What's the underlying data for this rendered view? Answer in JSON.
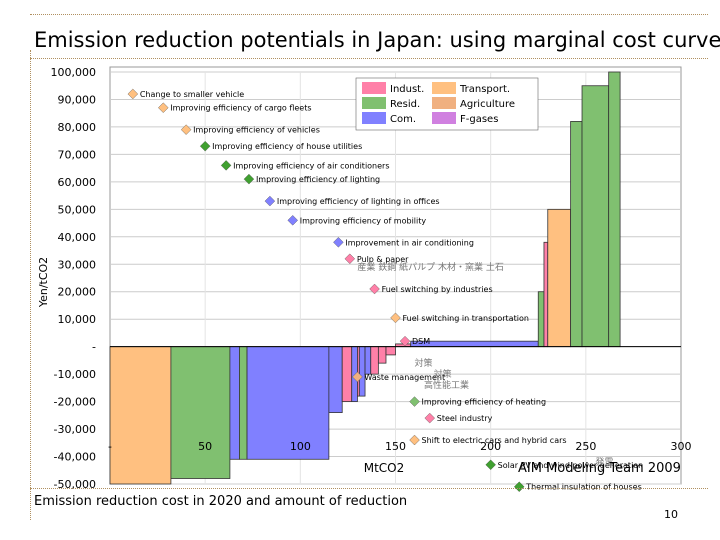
{
  "slide": {
    "title": "Emission reduction potentials in Japan: using marginal cost curve",
    "caption": "Emission reduction cost in 2020 and amount of reduction",
    "team": "AIM Modeling Team 2009",
    "page_number": "10"
  },
  "chart_data": {
    "type": "bar",
    "subtype": "marginal-abatement-cost-curve",
    "xlabel": "MtCO2",
    "ylabel": "Yen/tCO2",
    "xlim": [
      0,
      300
    ],
    "ylim": [
      -50000,
      100000
    ],
    "x_ticks": [
      {
        "v": 0,
        "label": "-"
      },
      {
        "v": 50,
        "label": "50"
      },
      {
        "v": 100,
        "label": "100"
      },
      {
        "v": 150,
        "label": "150"
      },
      {
        "v": 200,
        "label": "200"
      },
      {
        "v": 250,
        "label": "250"
      },
      {
        "v": 300,
        "label": "300"
      }
    ],
    "y_ticks": [
      {
        "v": 100000,
        "label": "100,000"
      },
      {
        "v": 90000,
        "label": "90,000"
      },
      {
        "v": 80000,
        "label": "80,000"
      },
      {
        "v": 70000,
        "label": "70,000"
      },
      {
        "v": 60000,
        "label": "60,000"
      },
      {
        "v": 50000,
        "label": "50,000"
      },
      {
        "v": 40000,
        "label": "40,000"
      },
      {
        "v": 30000,
        "label": "30,000"
      },
      {
        "v": 20000,
        "label": "20,000"
      },
      {
        "v": 10000,
        "label": "10,000"
      },
      {
        "v": 0,
        "label": "-"
      },
      {
        "v": -10000,
        "label": "-10,000"
      },
      {
        "v": -20000,
        "label": "-20,000"
      },
      {
        "v": -30000,
        "label": "-30,000"
      },
      {
        "v": -40000,
        "label": "-40,000"
      },
      {
        "v": -50000,
        "label": "-50,000"
      }
    ],
    "grid": true,
    "legend": {
      "placement": "top-center",
      "items": [
        {
          "name": "Indust.",
          "color": "#ff80a8"
        },
        {
          "name": "Resid.",
          "color": "#80c070"
        },
        {
          "name": "Com.",
          "color": "#8080ff"
        },
        {
          "name": "Transport.",
          "color": "#ffc080"
        },
        {
          "name": "Agriculture",
          "color": "#f0b080"
        },
        {
          "name": "F-gases",
          "color": "#d080e0"
        }
      ]
    },
    "sector_colors": {
      "Indust.": "#ff80a8",
      "Resid.": "#80c070",
      "Com.": "#8080ff",
      "Transport.": "#ffc080",
      "Agriculture": "#f0b080",
      "F-gases": "#d080e0"
    },
    "bars": [
      {
        "x0": 0,
        "x1": 32,
        "value": -50000,
        "sector": "Transport."
      },
      {
        "x0": 32,
        "x1": 63,
        "value": -48000,
        "sector": "Resid."
      },
      {
        "x0": 63,
        "x1": 68,
        "value": -41000,
        "sector": "Com."
      },
      {
        "x0": 68,
        "x1": 72,
        "value": -41000,
        "sector": "Resid."
      },
      {
        "x0": 72,
        "x1": 115,
        "value": -41000,
        "sector": "Com."
      },
      {
        "x0": 115,
        "x1": 122,
        "value": -24000,
        "sector": "Com."
      },
      {
        "x0": 122,
        "x1": 127,
        "value": -20000,
        "sector": "Indust."
      },
      {
        "x0": 127,
        "x1": 130,
        "value": -20000,
        "sector": "Com."
      },
      {
        "x0": 130,
        "x1": 131,
        "value": -18000,
        "sector": "Indust."
      },
      {
        "x0": 131,
        "x1": 134,
        "value": -18000,
        "sector": "Com."
      },
      {
        "x0": 134,
        "x1": 137,
        "value": -10000,
        "sector": "Com."
      },
      {
        "x0": 137,
        "x1": 141,
        "value": -10000,
        "sector": "Indust."
      },
      {
        "x0": 141,
        "x1": 145,
        "value": -6000,
        "sector": "Indust."
      },
      {
        "x0": 145,
        "x1": 150,
        "value": -3000,
        "sector": "Indust."
      },
      {
        "x0": 150,
        "x1": 158,
        "value": 1000,
        "sector": "Indust."
      },
      {
        "x0": 158,
        "x1": 225,
        "value": 2000,
        "sector": "Com."
      },
      {
        "x0": 225,
        "x1": 228,
        "value": 20000,
        "sector": "Resid."
      },
      {
        "x0": 228,
        "x1": 230,
        "value": 38000,
        "sector": "Indust."
      },
      {
        "x0": 230,
        "x1": 242,
        "value": 50000,
        "sector": "Transport."
      },
      {
        "x0": 242,
        "x1": 248,
        "value": 82000,
        "sector": "Resid."
      },
      {
        "x0": 248,
        "x1": 262,
        "value": 95000,
        "sector": "Resid."
      },
      {
        "x0": 262,
        "x1": 268,
        "value": 100000,
        "sector": "Resid."
      }
    ],
    "annotations": [
      {
        "text": "Change to smaller vehicle",
        "marker_color": "#ffc080",
        "x": 12,
        "y": 92000
      },
      {
        "text": "Improving efficiency of cargo fleets",
        "marker_color": "#ffc080",
        "x": 28,
        "y": 87000
      },
      {
        "text": "Improving efficiency of vehicles",
        "marker_color": "#ffc080",
        "x": 40,
        "y": 79000
      },
      {
        "text": "Improving efficiency of house utilities",
        "marker_color": "#40a030",
        "x": 50,
        "y": 73000
      },
      {
        "text": "Improving efficiency of air conditioners",
        "marker_color": "#40a030",
        "x": 61,
        "y": 66000
      },
      {
        "text": "Improving efficiency of lighting",
        "marker_color": "#40a030",
        "x": 73,
        "y": 61000
      },
      {
        "text": "Improving efficiency of lighting in offices",
        "marker_color": "#8080ff",
        "x": 84,
        "y": 53000
      },
      {
        "text": "Improving efficiency of mobility",
        "marker_color": "#8080ff",
        "x": 96,
        "y": 46000
      },
      {
        "text": "Improvement in air conditioning",
        "marker_color": "#8080ff",
        "x": 120,
        "y": 38000
      },
      {
        "text": "Pulp & paper",
        "marker_color": "#ff80a8",
        "x": 126,
        "y": 32000
      },
      {
        "text": "Fuel switching by industries",
        "marker_color": "#ff80a8",
        "x": 139,
        "y": 21000
      },
      {
        "text": "Fuel switching in transportation",
        "marker_color": "#ffc080",
        "x": 150,
        "y": 10500
      },
      {
        "text": "DSM",
        "marker_color": "#ff80a8",
        "x": 155,
        "y": 2000
      },
      {
        "text": "Waste management",
        "marker_color": "#f0b080",
        "x": 130,
        "y": -11000
      },
      {
        "text": "Improving efficiency of heating",
        "marker_color": "#80c070",
        "x": 160,
        "y": -20000
      },
      {
        "text": "Steel industry",
        "marker_color": "#ff80a8",
        "x": 168,
        "y": -26000
      },
      {
        "text": "Shift to electric cars and hybrid cars",
        "marker_color": "#ffc080",
        "x": 160,
        "y": -34000
      },
      {
        "text": "Solar PV and wind power generation",
        "marker_color": "#40a030",
        "x": 200,
        "y": -43000
      },
      {
        "text": "Thermal insulation of houses",
        "marker_color": "#40a030",
        "x": 215,
        "y": -51000
      }
    ],
    "overlay_cjk_text": [
      {
        "text": "産業 鉄鋼 紙パルプ 木材・窯業 土石",
        "x": 130,
        "y": 28000
      },
      {
        "text": "対策",
        "x": 160,
        "y": -7000
      },
      {
        "text": "対策",
        "x": 170,
        "y": -11000
      },
      {
        "text": "高性能工業",
        "x": 165,
        "y": -15000
      },
      {
        "text": "発電",
        "x": 255,
        "y": -43000
      }
    ]
  }
}
